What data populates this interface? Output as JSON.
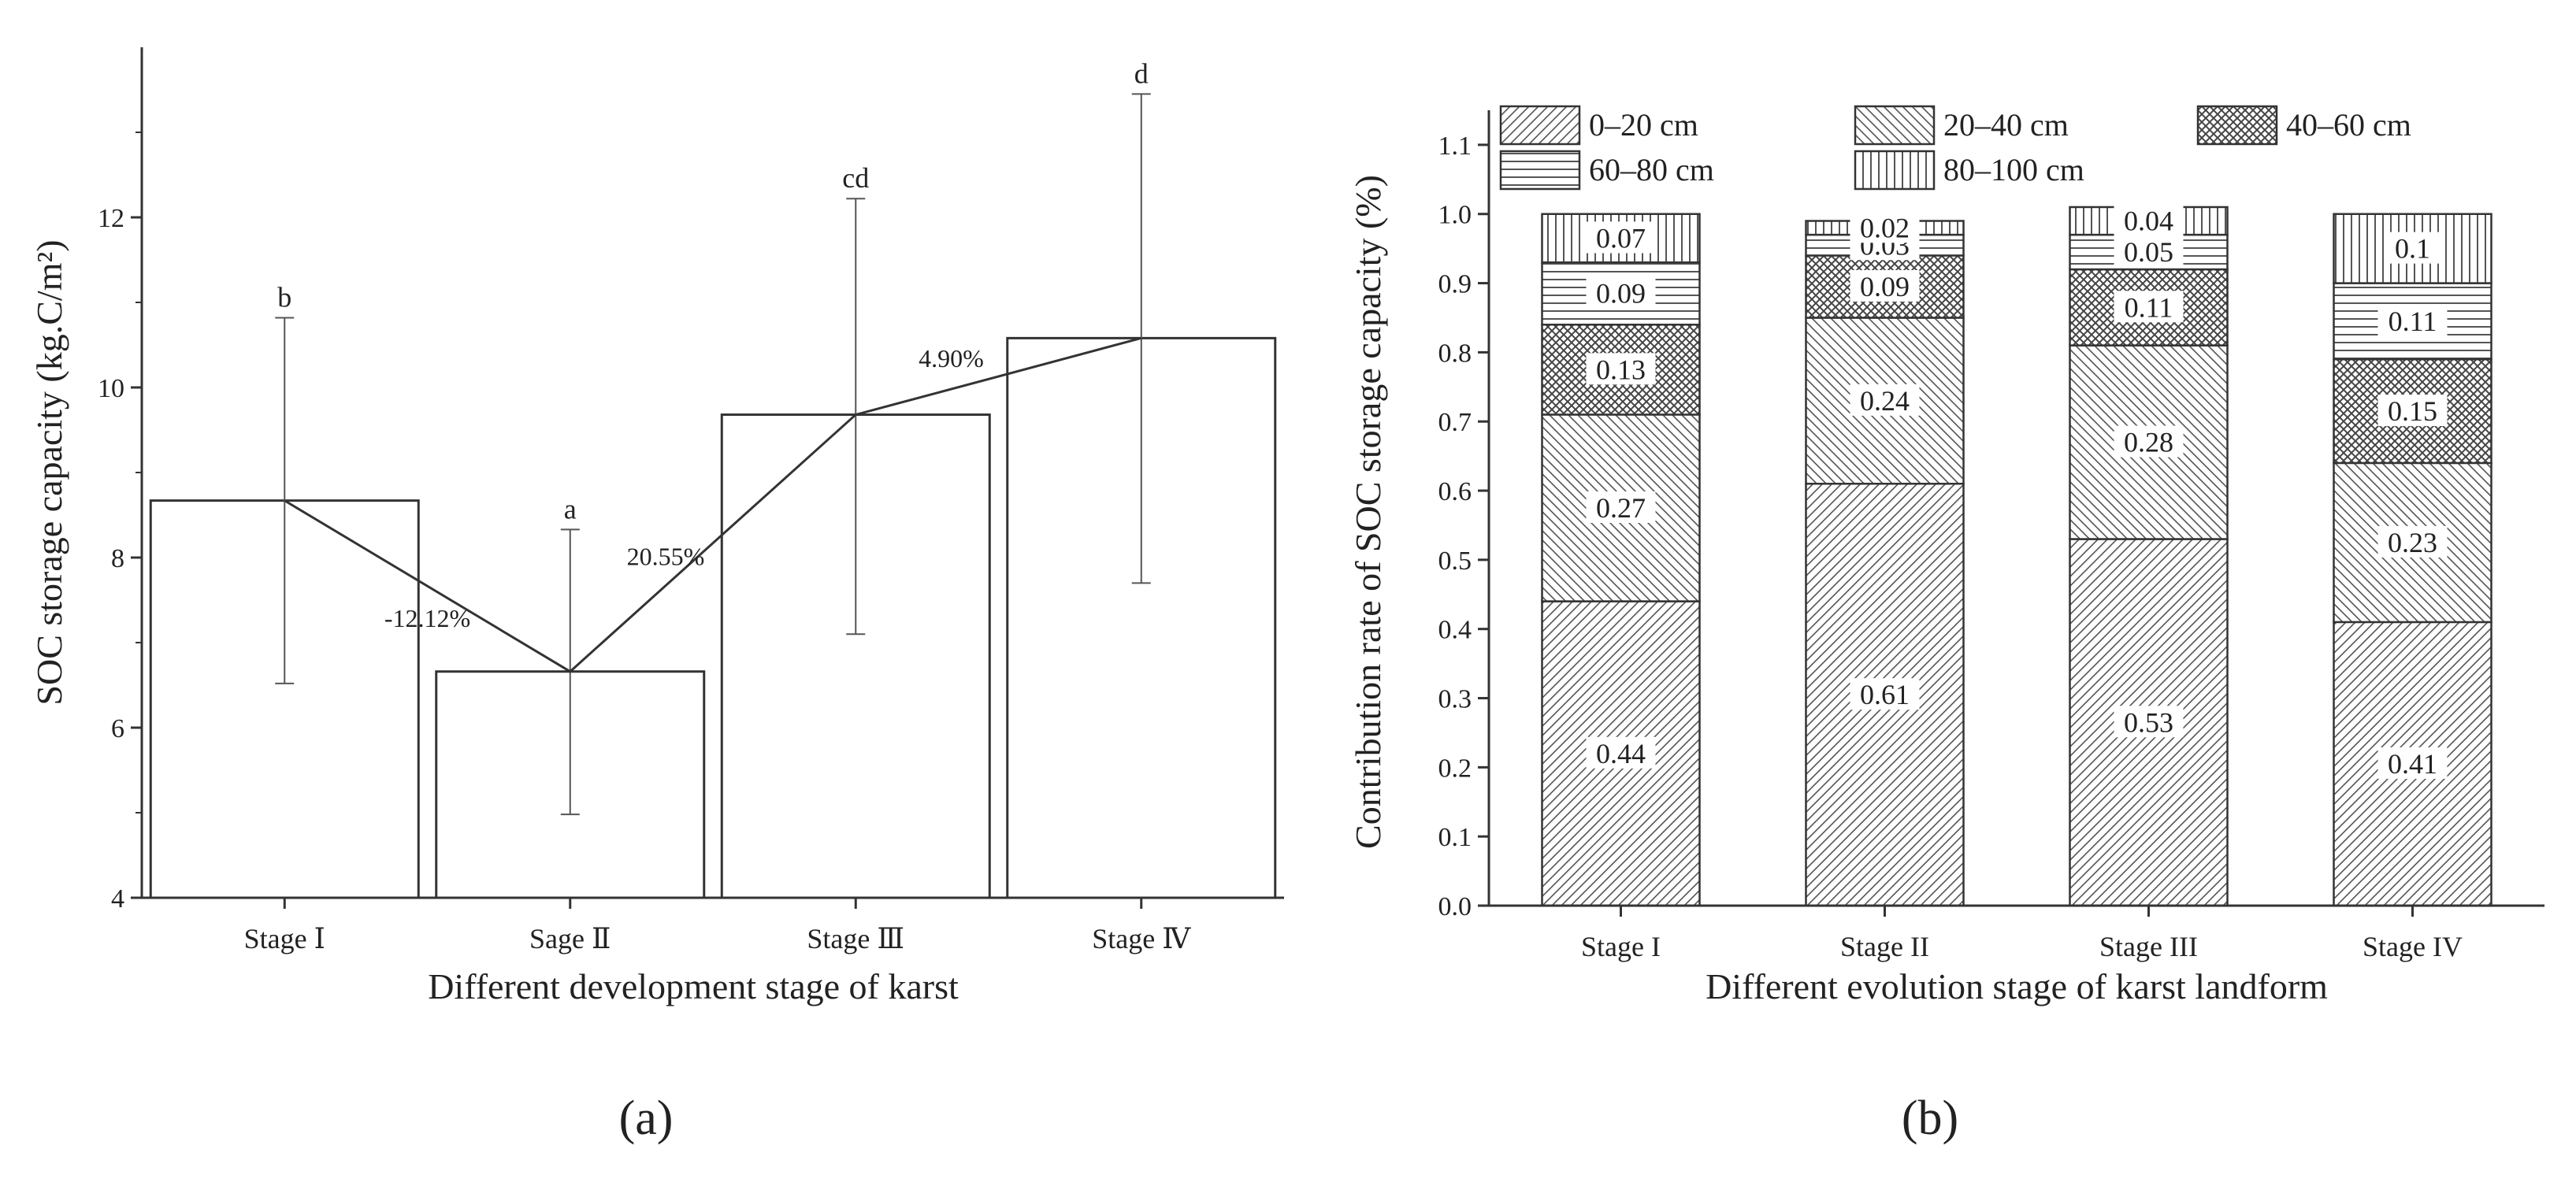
{
  "chart_data": [
    {
      "type": "bar",
      "panel_label": "(a)",
      "categories": [
        "Stage Ⅰ",
        "Sage Ⅱ",
        "Stage Ⅲ",
        "Stage Ⅳ"
      ],
      "values": [
        8.67,
        6.66,
        9.68,
        10.58
      ],
      "error_low": [
        6.52,
        4.98,
        7.1,
        7.7
      ],
      "error_high": [
        10.82,
        8.33,
        12.22,
        13.45
      ],
      "significance_letters": [
        "b",
        "a",
        "cd",
        "d"
      ],
      "change_labels": [
        "-12.12%",
        "20.55%",
        "4.90%"
      ],
      "xlabel": "Different development stage of karst",
      "ylabel": "SOC storage capacity (kg.C/m²)",
      "ylim": [
        4,
        14
      ],
      "yticks": [
        "4",
        "6",
        "8",
        "10",
        "12"
      ],
      "grid": false
    },
    {
      "type": "bar",
      "stacked": true,
      "panel_label": "(b)",
      "categories": [
        "Stage I",
        "Stage II",
        "Stage III",
        "Stage IV"
      ],
      "series": [
        {
          "name": "0–20 cm",
          "values": [
            0.44,
            0.61,
            0.53,
            0.41
          ],
          "labels": [
            "0.44",
            "0.61",
            "0.53",
            "0.41"
          ]
        },
        {
          "name": "20–40 cm",
          "values": [
            0.27,
            0.24,
            0.28,
            0.23
          ],
          "labels": [
            "0.27",
            "0.24",
            "0.28",
            "0.23"
          ]
        },
        {
          "name": "40–60 cm",
          "values": [
            0.13,
            0.09,
            0.11,
            0.15
          ],
          "labels": [
            "0.13",
            "0.09",
            "0.11",
            "0.15"
          ]
        },
        {
          "name": "60–80 cm",
          "values": [
            0.09,
            0.03,
            0.05,
            0.11
          ],
          "labels": [
            "0.09",
            "0.03",
            "0.05",
            "0.11"
          ]
        },
        {
          "name": "80–100 cm",
          "values": [
            0.07,
            0.02,
            0.04,
            0.1
          ],
          "labels": [
            "0.07",
            "0.02",
            "0.04",
            "0.1"
          ]
        }
      ],
      "xlabel": "Different evolution stage of karst landform",
      "ylabel": "Contribution rate of SOC storage capacity (%)",
      "ylim": [
        0,
        1.15
      ],
      "yticks": [
        "0.0",
        "0.1",
        "0.2",
        "0.3",
        "0.4",
        "0.5",
        "0.6",
        "0.7",
        "0.8",
        "0.9",
        "1.0",
        "1.1"
      ],
      "legend_position": "top",
      "grid": false
    }
  ]
}
